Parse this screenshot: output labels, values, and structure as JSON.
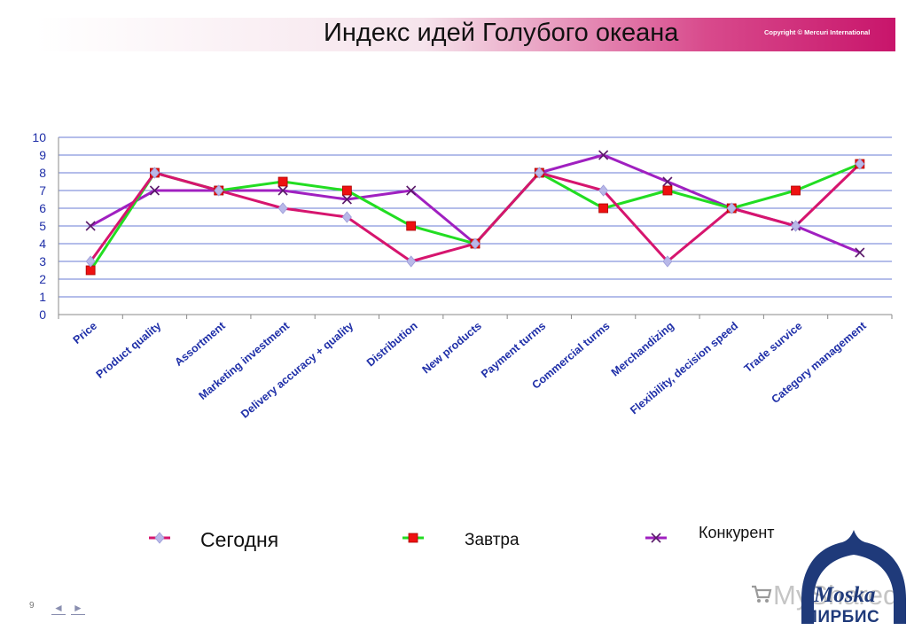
{
  "header": {
    "title": "Индекс идей Голубого океана",
    "copyright": "Copyright © Mercuri International"
  },
  "chart_data": {
    "type": "line",
    "title": "Индекс идей Голубого океана",
    "categories": [
      "Price",
      "Product quality",
      "Assortment",
      "Marketing investment",
      "Delivery accuracy + quality",
      "Distribution",
      "New products",
      "Payment turms",
      "Commercial turms",
      "Merchandizing",
      "Flexibility, decision speed",
      "Trade survice",
      "Category management"
    ],
    "ylim": [
      0,
      10
    ],
    "yticks": [
      0,
      1,
      2,
      3,
      4,
      5,
      6,
      7,
      8,
      9,
      10
    ],
    "grid": true,
    "legend_position": "bottom",
    "series": [
      {
        "name": "Сегодня",
        "color": "#d6156e",
        "marker": "diamond",
        "marker_color": "#b8b8e8",
        "values": [
          3,
          8,
          7,
          6,
          5.5,
          3,
          4,
          8,
          7,
          3,
          6,
          5,
          8.5
        ]
      },
      {
        "name": "Завтра",
        "color": "#22dd22",
        "marker": "square",
        "marker_color": "#ee1111",
        "values": [
          2.5,
          8,
          7,
          7.5,
          7,
          5,
          4,
          8,
          6,
          7,
          6,
          7,
          8.5
        ]
      },
      {
        "name": "Конкурент",
        "color": "#a020c0",
        "marker": "x",
        "marker_color": "#5a1a6a",
        "values": [
          5,
          7,
          7,
          7,
          6.5,
          7,
          4,
          8,
          9,
          7.5,
          6,
          5,
          3.5
        ]
      }
    ]
  },
  "footer": {
    "page_number": "9",
    "prev_icon": "◄",
    "next_icon": "►",
    "watermark": "MyShared",
    "logo_script": "Moska",
    "logo_text": "МИРБИС"
  },
  "colors": {
    "axis_label": "#1f2fa8",
    "grid": "#6a7bd6",
    "accent": "#c8156b"
  }
}
